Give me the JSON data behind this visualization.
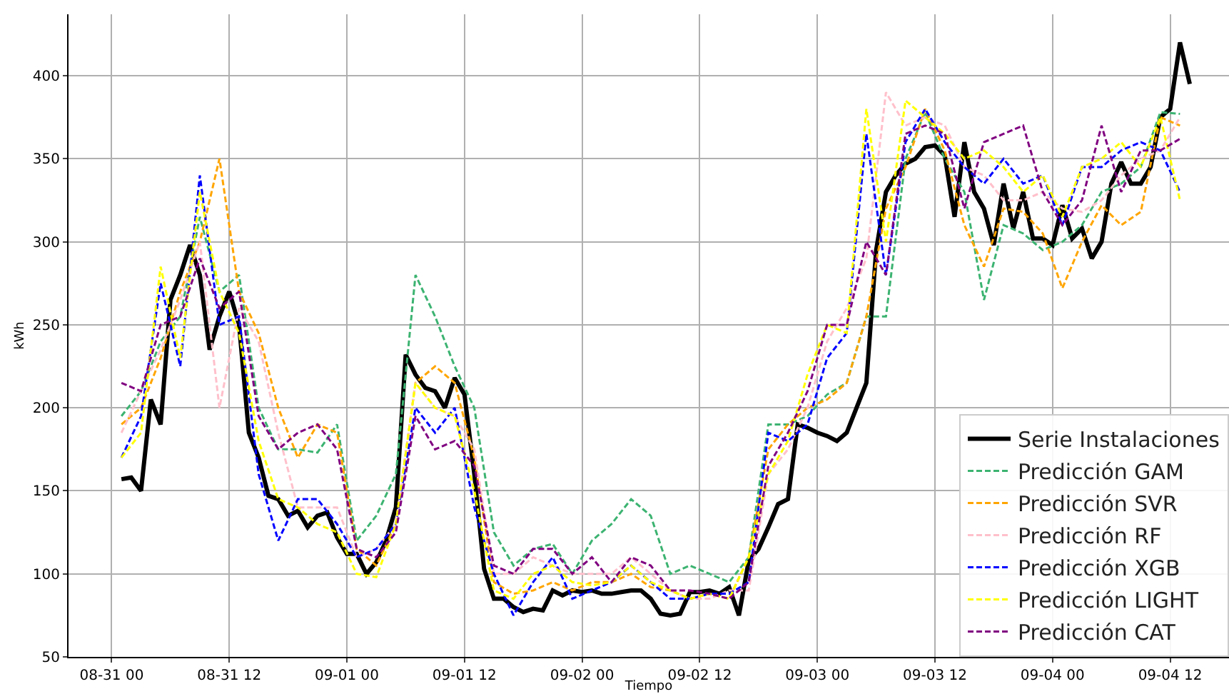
{
  "chart_data": {
    "type": "line",
    "xlabel": "Tiempo",
    "ylabel": "kWh",
    "xlim": [
      "--08-30T19:36",
      "--09-04T18:00"
    ],
    "ylim": [
      50,
      437
    ],
    "xticks": [
      {
        "value": "--08-31T00:00",
        "label": "08-31 00"
      },
      {
        "value": "--08-31T12:00",
        "label": "08-31 12"
      },
      {
        "value": "--09-01T00:00",
        "label": "09-01 00"
      },
      {
        "value": "--09-01T12:00",
        "label": "09-01 12"
      },
      {
        "value": "--09-02T00:00",
        "label": "09-02 00"
      },
      {
        "value": "--09-02T12:00",
        "label": "09-02 12"
      },
      {
        "value": "--09-03T00:00",
        "label": "09-03 00"
      },
      {
        "value": "--09-03T12:00",
        "label": "09-03 12"
      },
      {
        "value": "--09-04T00:00",
        "label": "09-04 00"
      },
      {
        "value": "--09-04T12:00",
        "label": "09-04 12"
      }
    ],
    "yticks": [
      50,
      100,
      150,
      200,
      250,
      300,
      350,
      400
    ],
    "grid": true,
    "legend": "bottom right",
    "marker": "none",
    "x": [
      "--08-31T01:00",
      "--08-31T03:00",
      "--08-31T05:00",
      "--08-31T07:00",
      "--08-31T09:00",
      "--08-31T11:00",
      "--08-31T13:00",
      "--08-31T15:00",
      "--08-31T17:00",
      "--08-31T19:00",
      "--08-31T21:00",
      "--08-31T23:00",
      "--09-01T01:00",
      "--09-01T03:00",
      "--09-01T05:00",
      "--09-01T07:00",
      "--09-01T09:00",
      "--09-01T11:00",
      "--09-01T13:00",
      "--09-01T15:00",
      "--09-01T17:00",
      "--09-01T19:00",
      "--09-01T21:00",
      "--09-01T23:00",
      "--09-02T01:00",
      "--09-02T03:00",
      "--09-02T05:00",
      "--09-02T07:00",
      "--09-02T09:00",
      "--09-02T11:00",
      "--09-02T13:00",
      "--09-02T15:00",
      "--09-02T17:00",
      "--09-02T19:00",
      "--09-02T21:00",
      "--09-02T23:00",
      "--09-03T01:00",
      "--09-03T03:00",
      "--09-03T05:00",
      "--09-03T07:00",
      "--09-03T09:00",
      "--09-03T11:00",
      "--09-03T13:00",
      "--09-03T15:00",
      "--09-03T17:00",
      "--09-03T19:00",
      "--09-03T21:00",
      "--09-03T23:00",
      "--09-04T01:00",
      "--09-04T03:00",
      "--09-04T05:00",
      "--09-04T07:00",
      "--09-04T09:00",
      "--09-04T11:00",
      "--09-04T13:00"
    ],
    "series": [
      {
        "name": "Serie Instalaciones",
        "color": "#000000",
        "line_style": "solid",
        "x": [
          "--08-31T01:00",
          "--08-31T02:00",
          "--08-31T03:00",
          "--08-31T04:00",
          "--08-31T05:00",
          "--08-31T06:00",
          "--08-31T07:00",
          "--08-31T08:00",
          "--08-31T09:00",
          "--08-31T10:00",
          "--08-31T11:00",
          "--08-31T12:00",
          "--08-31T13:00",
          "--08-31T14:00",
          "--08-31T15:00",
          "--08-31T16:00",
          "--08-31T17:00",
          "--08-31T18:00",
          "--08-31T19:00",
          "--08-31T20:00",
          "--08-31T21:00",
          "--08-31T22:00",
          "--08-31T23:00",
          "--09-01T00:00",
          "--09-01T01:00",
          "--09-01T02:00",
          "--09-01T03:00",
          "--09-01T04:00",
          "--09-01T05:00",
          "--09-01T06:00",
          "--09-01T07:00",
          "--09-01T08:00",
          "--09-01T09:00",
          "--09-01T10:00",
          "--09-01T11:00",
          "--09-01T12:00",
          "--09-01T13:00",
          "--09-01T14:00",
          "--09-01T15:00",
          "--09-01T16:00",
          "--09-01T17:00",
          "--09-01T18:00",
          "--09-01T19:00",
          "--09-01T20:00",
          "--09-01T21:00",
          "--09-01T22:00",
          "--09-01T23:00",
          "--09-02T00:00",
          "--09-02T01:00",
          "--09-02T02:00",
          "--09-02T03:00",
          "--09-02T04:00",
          "--09-02T05:00",
          "--09-02T06:00",
          "--09-02T07:00",
          "--09-02T08:00",
          "--09-02T09:00",
          "--09-02T10:00",
          "--09-02T11:00",
          "--09-02T12:00",
          "--09-02T13:00",
          "--09-02T14:00",
          "--09-02T15:00",
          "--09-02T16:00",
          "--09-02T17:00",
          "--09-02T18:00",
          "--09-02T19:00",
          "--09-02T20:00",
          "--09-02T21:00",
          "--09-02T22:00",
          "--09-02T23:00",
          "--09-03T00:00",
          "--09-03T01:00",
          "--09-03T02:00",
          "--09-03T03:00",
          "--09-03T04:00",
          "--09-03T05:00",
          "--09-03T06:00",
          "--09-03T07:00",
          "--09-03T08:00",
          "--09-03T09:00",
          "--09-03T10:00",
          "--09-03T11:00",
          "--09-03T12:00",
          "--09-03T13:00",
          "--09-03T14:00",
          "--09-03T15:00",
          "--09-03T16:00",
          "--09-03T17:00",
          "--09-03T18:00",
          "--09-03T19:00",
          "--09-03T20:00",
          "--09-03T21:00",
          "--09-03T22:00",
          "--09-03T23:00",
          "--09-04T00:00",
          "--09-04T01:00",
          "--09-04T02:00",
          "--09-04T03:00",
          "--09-04T04:00",
          "--09-04T05:00",
          "--09-04T06:00",
          "--09-04T07:00",
          "--09-04T08:00",
          "--09-04T09:00",
          "--09-04T10:00",
          "--09-04T11:00",
          "--09-04T12:00",
          "--09-04T13:00",
          "--09-04T14:00"
        ],
        "values": [
          157,
          158,
          150,
          205,
          190,
          265,
          280,
          298,
          280,
          235,
          255,
          270,
          250,
          185,
          170,
          147,
          145,
          135,
          138,
          128,
          135,
          137,
          122,
          112,
          112,
          100,
          107,
          120,
          140,
          232,
          220,
          212,
          210,
          200,
          218,
          208,
          160,
          103,
          85,
          85,
          80,
          77,
          79,
          78,
          90,
          87,
          90,
          89,
          90,
          88,
          88,
          89,
          90,
          90,
          85,
          76,
          75,
          76,
          89,
          89,
          90,
          88,
          92,
          75,
          108,
          115,
          128,
          142,
          145,
          190,
          188,
          185,
          183,
          180,
          185,
          200,
          215,
          295,
          330,
          340,
          347,
          350,
          357,
          358,
          352,
          315,
          360,
          330,
          320,
          298,
          335,
          308,
          330,
          302,
          302,
          298,
          322,
          302,
          308,
          290,
          300,
          335,
          348,
          335,
          335,
          345,
          375,
          380,
          420,
          395
        ]
      },
      {
        "name": "Predicción GAM",
        "color": "#3cb371",
        "line_style": "dashed",
        "values": [
          195,
          210,
          240,
          255,
          315,
          270,
          280,
          200,
          175,
          175,
          173,
          190,
          120,
          135,
          160,
          280,
          255,
          225,
          200,
          125,
          105,
          115,
          118,
          100,
          120,
          130,
          145,
          135,
          100,
          105,
          100,
          95,
          110,
          190,
          190,
          195,
          208,
          215,
          255,
          255,
          350,
          378,
          350,
          330,
          265,
          310,
          305,
          295,
          300,
          310,
          330,
          335,
          345,
          378,
          377
        ]
      },
      {
        "name": "Predicción SVR",
        "color": "#ffa500",
        "line_style": "dashed",
        "values": [
          190,
          200,
          230,
          270,
          300,
          350,
          270,
          245,
          200,
          170,
          190,
          185,
          115,
          105,
          130,
          215,
          225,
          215,
          170,
          95,
          88,
          90,
          95,
          90,
          95,
          95,
          100,
          92,
          90,
          85,
          88,
          85,
          110,
          175,
          190,
          200,
          205,
          215,
          255,
          320,
          345,
          380,
          355,
          310,
          285,
          320,
          318,
          305,
          272,
          300,
          322,
          310,
          318,
          375,
          370
        ]
      },
      {
        "name": "Predicción RF",
        "color": "#ffc0cb",
        "line_style": "dashed",
        "values": [
          185,
          210,
          235,
          265,
          300,
          200,
          260,
          240,
          185,
          140,
          140,
          140,
          110,
          115,
          130,
          215,
          200,
          195,
          175,
          100,
          100,
          110,
          105,
          100,
          100,
          100,
          110,
          100,
          90,
          85,
          85,
          90,
          90,
          160,
          175,
          200,
          240,
          260,
          290,
          390,
          370,
          375,
          370,
          345,
          340,
          325,
          325,
          330,
          320,
          318,
          325,
          340,
          350,
          355,
          375
        ]
      },
      {
        "name": "Predicción XGB",
        "color": "#0000ff",
        "line_style": "dashed",
        "values": [
          170,
          195,
          275,
          225,
          340,
          250,
          255,
          160,
          120,
          145,
          145,
          130,
          110,
          115,
          130,
          200,
          185,
          200,
          140,
          100,
          75,
          95,
          110,
          85,
          90,
          95,
          105,
          95,
          85,
          85,
          88,
          88,
          95,
          185,
          180,
          190,
          230,
          245,
          365,
          280,
          360,
          380,
          360,
          345,
          335,
          350,
          335,
          340,
          310,
          345,
          345,
          355,
          360,
          355,
          330
        ]
      },
      {
        "name": "Predicción LIGHT",
        "color": "#ffff00",
        "line_style": "dashed",
        "values": [
          170,
          185,
          285,
          230,
          330,
          270,
          245,
          180,
          145,
          140,
          130,
          125,
          100,
          98,
          130,
          215,
          200,
          195,
          150,
          90,
          85,
          100,
          105,
          95,
          93,
          95,
          105,
          95,
          90,
          85,
          88,
          85,
          110,
          160,
          180,
          220,
          250,
          245,
          380,
          300,
          385,
          375,
          365,
          350,
          355,
          345,
          330,
          340,
          315,
          345,
          350,
          360,
          345,
          375,
          325
        ]
      },
      {
        "name": "Predicción CAT",
        "color": "#800080",
        "line_style": "dashed",
        "values": [
          215,
          210,
          250,
          255,
          290,
          260,
          270,
          195,
          175,
          185,
          190,
          175,
          115,
          110,
          125,
          195,
          175,
          180,
          165,
          105,
          100,
          115,
          115,
          100,
          110,
          95,
          110,
          105,
          90,
          90,
          88,
          85,
          95,
          165,
          185,
          210,
          250,
          250,
          300,
          280,
          365,
          370,
          365,
          320,
          360,
          365,
          370,
          330,
          310,
          325,
          370,
          330,
          355,
          355,
          362
        ]
      }
    ]
  }
}
